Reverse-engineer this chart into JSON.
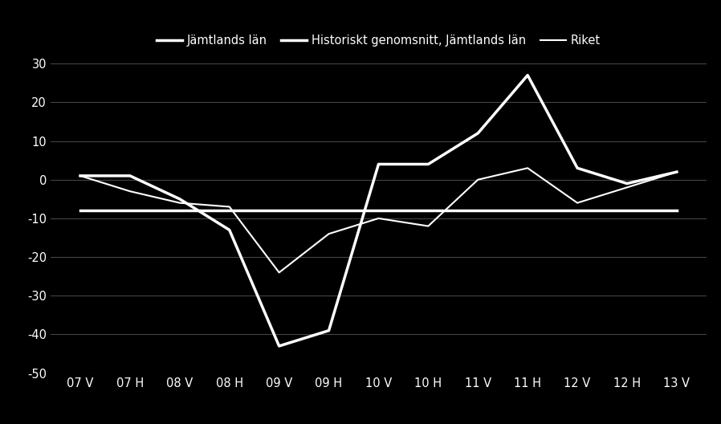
{
  "x_labels": [
    "07 V",
    "07 H",
    "08 V",
    "08 H",
    "09 V",
    "09 H",
    "10 V",
    "10 H",
    "11 V",
    "11 H",
    "12 V",
    "12 H",
    "13 V"
  ],
  "jamtland": [
    1,
    1,
    -5,
    -13,
    -43,
    -39,
    4,
    4,
    12,
    27,
    3,
    -1,
    2
  ],
  "historiskt": [
    -8,
    -8,
    -8,
    -8,
    -8,
    -8,
    -8,
    -8,
    -8,
    -8,
    -8,
    -8,
    -8
  ],
  "riket": [
    1,
    -3,
    -6,
    -7,
    -24,
    -14,
    -10,
    -12,
    0,
    3,
    -6,
    -2,
    2
  ],
  "legend_labels": [
    "Jämtlands län",
    "Historiskt genomsnitt, Jämtlands län",
    "Riket"
  ],
  "ylim": [
    -50,
    30
  ],
  "yticks": [
    -50,
    -40,
    -30,
    -20,
    -10,
    0,
    10,
    20,
    30
  ],
  "background_color": "#000000",
  "line_color_main": "#ffffff",
  "line_color_hist": "#ffffff",
  "line_color_riket": "#ffffff",
  "grid_color": "#444444",
  "text_color": "#ffffff"
}
